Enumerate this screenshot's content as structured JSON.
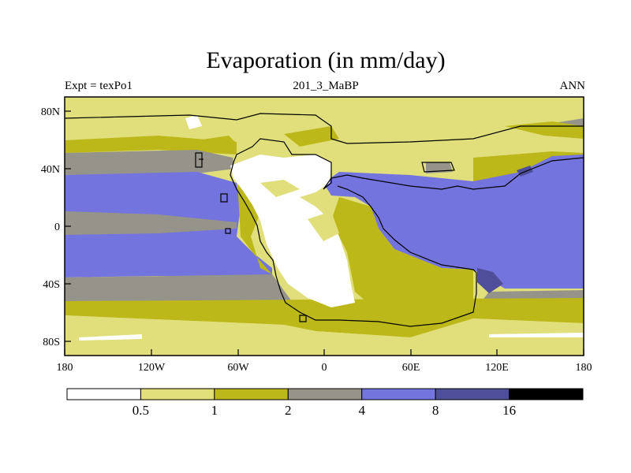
{
  "title": "Evaporation (in mm/day)",
  "left_string": "Expt = texPo1",
  "center_string": "201_3_MaBP",
  "right_string": "ANN",
  "map": {
    "lat_ticks": [
      "80N",
      "40N",
      "0",
      "40S",
      "80S"
    ],
    "lon_ticks": [
      "180",
      "120W",
      "60W",
      "0",
      "60E",
      "120E",
      "180"
    ]
  },
  "legend": {
    "levels": [
      "0.5",
      "1",
      "2",
      "4",
      "8",
      "16"
    ],
    "colors": [
      "#ffffff",
      "#e0df7c",
      "#bdb819",
      "#96948a",
      "#7474df",
      "#4e4e9a",
      "#000000"
    ]
  }
}
